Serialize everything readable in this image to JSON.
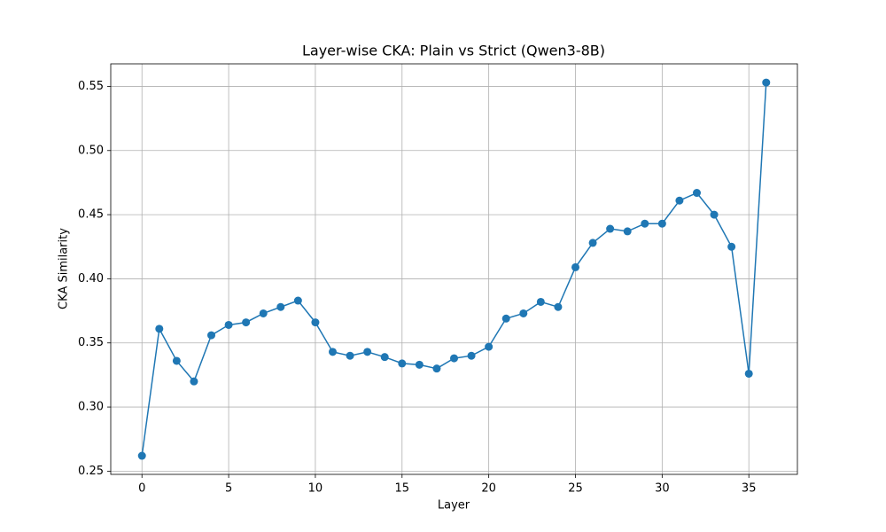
{
  "chart_data": {
    "type": "line",
    "title": "Layer-wise CKA: Plain vs Strict (Qwen3-8B)",
    "x_label": "Layer",
    "y_label": "CKA Similarity",
    "x": [
      0,
      1,
      2,
      3,
      4,
      5,
      6,
      7,
      8,
      9,
      10,
      11,
      12,
      13,
      14,
      15,
      16,
      17,
      18,
      19,
      20,
      21,
      22,
      23,
      24,
      25,
      26,
      27,
      28,
      29,
      30,
      31,
      32,
      33,
      34,
      35,
      36
    ],
    "series": [
      {
        "color": "#1f77b4",
        "values": [
          0.262,
          0.361,
          0.336,
          0.32,
          0.356,
          0.364,
          0.366,
          0.373,
          0.378,
          0.383,
          0.366,
          0.343,
          0.34,
          0.343,
          0.339,
          0.334,
          0.333,
          0.33,
          0.338,
          0.34,
          0.347,
          0.369,
          0.373,
          0.382,
          0.378,
          0.409,
          0.428,
          0.439,
          0.437,
          0.443,
          0.443,
          0.461,
          0.467,
          0.45,
          0.425,
          0.326,
          0.553
        ]
      }
    ],
    "xlim": [
      -1.8,
      37.8
    ],
    "ylim": [
      0.2475,
      0.5676
    ],
    "xticks": [
      0,
      5,
      10,
      15,
      20,
      25,
      30,
      35
    ],
    "yticks": [
      0.25,
      {
        "value": 0.3,
        "label": "0.30"
      },
      0.35,
      {
        "value": 0.4,
        "label": "0.40"
      },
      0.45,
      {
        "value": 0.5,
        "label": "0.50"
      },
      0.55
    ],
    "grid": true
  }
}
